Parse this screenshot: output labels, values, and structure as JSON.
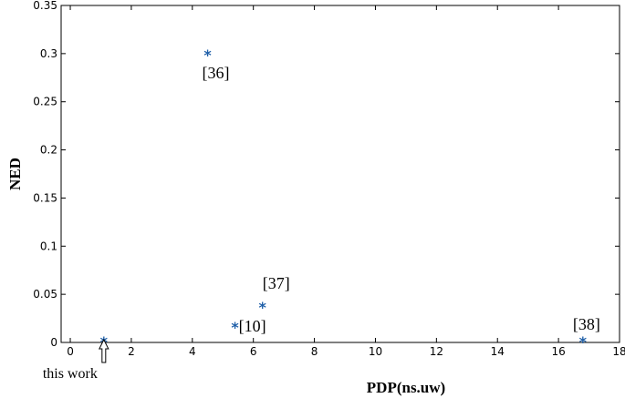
{
  "chart_data": {
    "type": "scatter",
    "title": "",
    "xlabel": "PDP(ns.uw)",
    "ylabel": "NED",
    "xlim": [
      -0.3,
      18
    ],
    "ylim": [
      0,
      0.35
    ],
    "xticks": [
      "0",
      "2",
      "4",
      "6",
      "8",
      "10",
      "12",
      "14",
      "16",
      "18"
    ],
    "yticks": [
      "0",
      "0.05",
      "0.1",
      "0.15",
      "0.2",
      "0.25",
      "0.3",
      "0.35"
    ],
    "grid": false,
    "marker": "*",
    "color": "#1f5fa8",
    "points": [
      {
        "x": 1.1,
        "y": 0.002,
        "label": ""
      },
      {
        "x": 4.5,
        "y": 0.3,
        "label": "[36]"
      },
      {
        "x": 5.4,
        "y": 0.017,
        "label": "[10]"
      },
      {
        "x": 6.3,
        "y": 0.038,
        "label": "[37]"
      },
      {
        "x": 16.8,
        "y": 0.002,
        "label": "[38]"
      }
    ],
    "annotations": [
      {
        "text": "this work",
        "x": 1.1
      }
    ]
  }
}
